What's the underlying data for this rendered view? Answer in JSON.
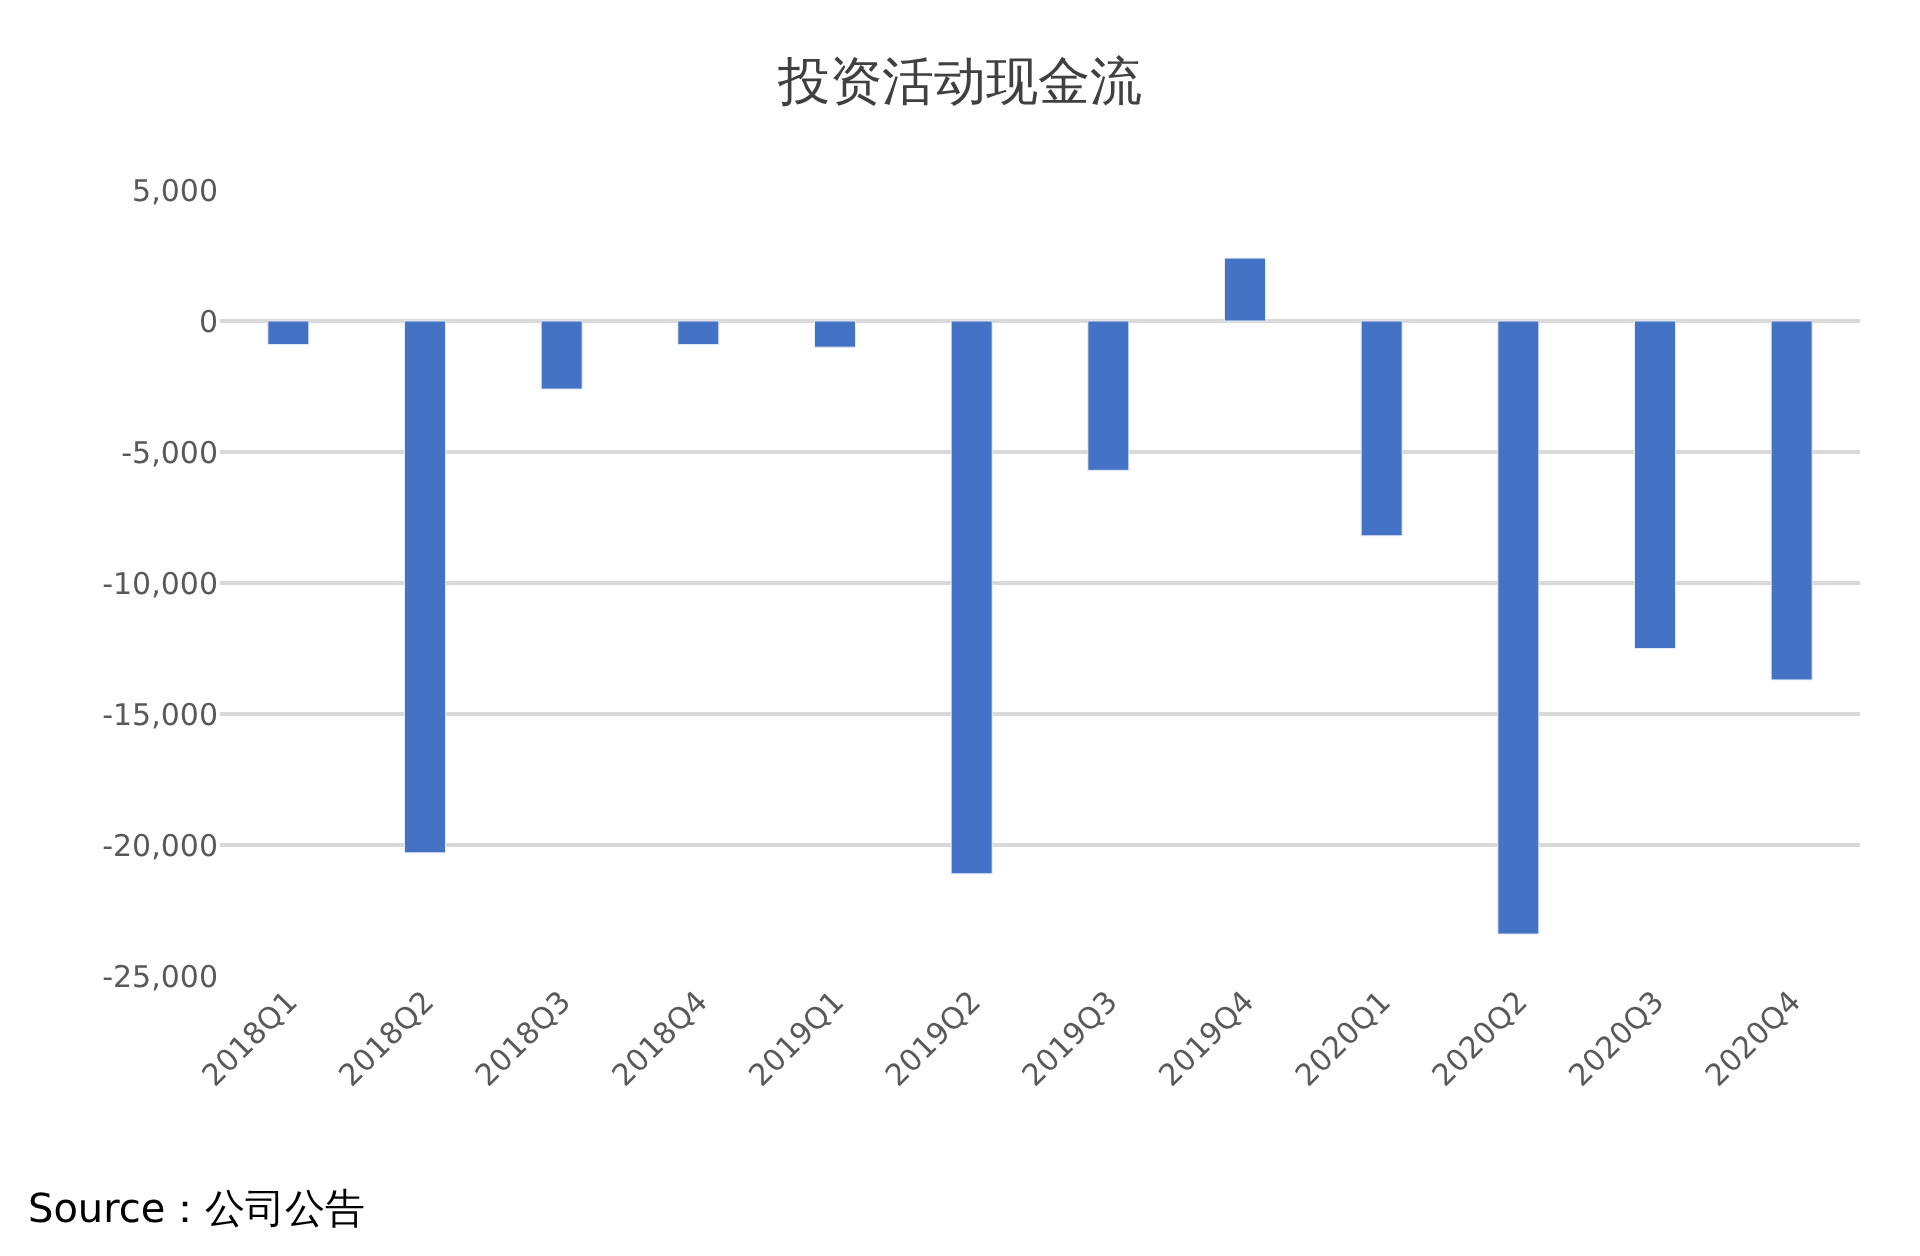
{
  "chart_data": {
    "type": "bar",
    "title": "投资活动现金流",
    "categories": [
      "2018Q1",
      "2018Q2",
      "2018Q3",
      "2018Q4",
      "2019Q1",
      "2019Q2",
      "2019Q3",
      "2019Q4",
      "2020Q1",
      "2020Q2",
      "2020Q3",
      "2020Q4"
    ],
    "series": [
      {
        "color": "#4472c4",
        "values": [
          -900,
          -20300,
          -2600,
          -900,
          -1000,
          -21100,
          -5700,
          2400,
          -8200,
          -23400,
          -12500,
          -13700
        ]
      }
    ],
    "ylim": [
      -25000,
      5000
    ],
    "yticks": [
      {
        "value": -25000,
        "label": "-25,000"
      },
      {
        "value": -20000,
        "label": "-20,000"
      },
      {
        "value": -15000,
        "label": "-15,000"
      },
      {
        "value": -10000,
        "label": "-10,000"
      },
      {
        "value": -5000,
        "label": "-5,000"
      },
      0,
      {
        "value": 5000,
        "label": "5,000"
      }
    ],
    "grid": "y",
    "legend": false,
    "annotations": [
      "Source：公司公告"
    ]
  }
}
